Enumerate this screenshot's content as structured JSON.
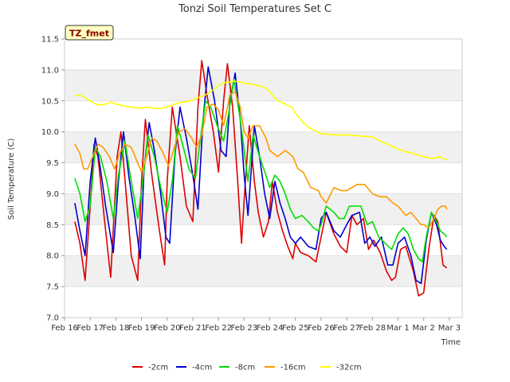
{
  "chart_data": {
    "type": "line",
    "title": "Tonzi Soil Temperatures Set C",
    "xlabel": "Time",
    "ylabel": "Soil Temperature (C)",
    "badge": "TZ_fmet",
    "ylim": [
      7.0,
      11.5
    ],
    "yticks": [
      7.0,
      7.5,
      8.0,
      8.5,
      9.0,
      9.5,
      10.0,
      10.5,
      11.0,
      11.5
    ],
    "ytick_labels": [
      "7.0",
      "7.5",
      "8.0",
      "8.5",
      "9.0",
      "9.5",
      "10.0",
      "10.5",
      "11.0",
      "11.5"
    ],
    "xlim": [
      0,
      15.5
    ],
    "xticks": [
      0,
      1,
      2,
      3,
      4,
      5,
      6,
      7,
      8,
      9,
      10,
      11,
      12,
      13,
      14,
      15
    ],
    "xtick_labels": [
      "Feb 16",
      "Feb 17",
      "Feb 18",
      "Feb 19",
      "Feb 20",
      "Feb 21",
      "Feb 22",
      "Feb 23",
      "Feb 24",
      "Feb 25",
      "Feb 26",
      "Feb 27",
      "Feb 28",
      "Mar 1",
      "Mar 2",
      "Mar 3"
    ],
    "grid": true,
    "legend_position": "bottom",
    "series": [
      {
        "name": "-2cm",
        "color": "#dd0000",
        "x": [
          0.4,
          0.6,
          0.8,
          1.0,
          1.15,
          1.3,
          1.55,
          1.8,
          2.05,
          2.2,
          2.4,
          2.6,
          2.85,
          3.0,
          3.15,
          3.4,
          3.7,
          3.9,
          4.0,
          4.2,
          4.5,
          4.75,
          5.0,
          5.2,
          5.35,
          5.55,
          5.8,
          6.0,
          6.2,
          6.35,
          6.55,
          6.75,
          6.9,
          7.0,
          7.2,
          7.4,
          7.55,
          7.75,
          7.95,
          8.1,
          8.3,
          8.5,
          8.7,
          8.9,
          9.0,
          9.2,
          9.5,
          9.8,
          10.0,
          10.2,
          10.5,
          10.75,
          11.0,
          11.2,
          11.4,
          11.65,
          11.85,
          12.05,
          12.3,
          12.55,
          12.75,
          12.9,
          13.1,
          13.3,
          13.6,
          13.8,
          14.0,
          14.2,
          14.4,
          14.55,
          14.75,
          14.9
        ],
        "values": [
          8.55,
          8.2,
          7.6,
          8.8,
          9.8,
          9.6,
          8.6,
          7.65,
          9.6,
          10.0,
          9.0,
          8.0,
          7.6,
          9.2,
          10.2,
          9.3,
          8.4,
          7.85,
          9.2,
          10.4,
          9.6,
          8.8,
          8.55,
          10.4,
          11.15,
          10.6,
          10.0,
          9.35,
          10.5,
          11.1,
          10.4,
          9.2,
          8.2,
          8.9,
          10.1,
          9.2,
          8.7,
          8.3,
          8.55,
          9.2,
          8.7,
          8.4,
          8.15,
          7.95,
          8.2,
          8.05,
          8.0,
          7.9,
          8.3,
          8.7,
          8.35,
          8.15,
          8.05,
          8.65,
          8.5,
          8.6,
          8.1,
          8.25,
          8.05,
          7.75,
          7.6,
          7.65,
          8.1,
          8.15,
          7.75,
          7.35,
          7.4,
          8.1,
          8.65,
          8.55,
          7.85,
          7.8
        ]
      },
      {
        "name": "-4cm",
        "color": "#0000cc",
        "x": [
          0.4,
          0.6,
          0.8,
          1.0,
          1.2,
          1.4,
          1.6,
          1.9,
          2.1,
          2.3,
          2.5,
          2.75,
          2.95,
          3.1,
          3.3,
          3.5,
          3.75,
          3.95,
          4.1,
          4.3,
          4.5,
          4.75,
          5.0,
          5.2,
          5.4,
          5.6,
          5.85,
          6.1,
          6.3,
          6.45,
          6.65,
          6.85,
          7.0,
          7.15,
          7.4,
          7.6,
          7.8,
          8.0,
          8.2,
          8.4,
          8.6,
          8.8,
          9.0,
          9.2,
          9.5,
          9.8,
          10.0,
          10.2,
          10.5,
          10.75,
          11.0,
          11.2,
          11.5,
          11.7,
          11.9,
          12.1,
          12.35,
          12.6,
          12.8,
          13.0,
          13.25,
          13.5,
          13.7,
          13.9,
          14.1,
          14.3,
          14.5,
          14.65,
          14.8,
          14.9
        ],
        "values": [
          8.85,
          8.4,
          8.0,
          9.2,
          9.9,
          9.4,
          8.8,
          8.05,
          9.2,
          10.0,
          9.3,
          8.6,
          7.95,
          9.4,
          10.15,
          9.7,
          9.0,
          8.3,
          8.2,
          9.6,
          10.4,
          9.9,
          9.3,
          8.75,
          10.2,
          11.05,
          10.5,
          9.7,
          9.6,
          10.5,
          10.95,
          10.2,
          9.3,
          8.65,
          10.1,
          9.6,
          9.0,
          8.6,
          9.2,
          8.85,
          8.6,
          8.3,
          8.2,
          8.3,
          8.15,
          8.1,
          8.6,
          8.7,
          8.4,
          8.3,
          8.5,
          8.65,
          8.7,
          8.2,
          8.3,
          8.15,
          8.3,
          7.85,
          7.85,
          8.2,
          8.3,
          8.0,
          7.6,
          7.55,
          8.25,
          8.7,
          8.5,
          8.25,
          8.15,
          8.1
        ]
      },
      {
        "name": "-8cm",
        "color": "#00dd00",
        "x": [
          0.4,
          0.6,
          0.8,
          1.0,
          1.2,
          1.4,
          1.65,
          1.9,
          2.1,
          2.35,
          2.6,
          2.85,
          3.05,
          3.25,
          3.5,
          3.75,
          4.0,
          4.2,
          4.4,
          4.6,
          4.85,
          5.1,
          5.3,
          5.5,
          5.7,
          5.95,
          6.2,
          6.4,
          6.6,
          6.85,
          7.0,
          7.15,
          7.35,
          7.6,
          7.85,
          8.0,
          8.2,
          8.4,
          8.6,
          8.8,
          9.0,
          9.25,
          9.5,
          9.7,
          9.9,
          10.0,
          10.2,
          10.5,
          10.7,
          10.9,
          11.1,
          11.3,
          11.55,
          11.8,
          12.0,
          12.25,
          12.5,
          12.75,
          13.0,
          13.2,
          13.4,
          13.6,
          13.8,
          13.95,
          14.1,
          14.3,
          14.5,
          14.65,
          14.8,
          14.9
        ],
        "values": [
          9.25,
          9.0,
          8.55,
          8.8,
          9.75,
          9.6,
          9.2,
          8.6,
          9.3,
          9.85,
          9.2,
          8.6,
          9.2,
          9.95,
          9.6,
          9.1,
          8.7,
          9.2,
          10.1,
          9.8,
          9.4,
          9.25,
          9.9,
          10.5,
          10.4,
          10.1,
          9.85,
          10.3,
          10.85,
          10.2,
          9.7,
          9.2,
          9.95,
          9.6,
          9.3,
          9.1,
          9.3,
          9.2,
          9.0,
          8.75,
          8.6,
          8.65,
          8.55,
          8.45,
          8.4,
          8.5,
          8.8,
          8.7,
          8.6,
          8.6,
          8.8,
          8.8,
          8.8,
          8.5,
          8.55,
          8.3,
          8.2,
          8.1,
          8.35,
          8.45,
          8.35,
          8.1,
          7.95,
          7.9,
          8.3,
          8.7,
          8.55,
          8.4,
          8.35,
          8.3
        ]
      },
      {
        "name": "-16cm",
        "color": "#ff9900",
        "x": [
          0.4,
          0.6,
          0.75,
          0.9,
          1.1,
          1.3,
          1.5,
          1.75,
          1.95,
          2.15,
          2.35,
          2.6,
          2.8,
          3.0,
          3.2,
          3.4,
          3.6,
          3.85,
          4.05,
          4.25,
          4.45,
          4.7,
          4.95,
          5.15,
          5.35,
          5.55,
          5.8,
          6.0,
          6.2,
          6.45,
          6.65,
          6.85,
          7.0,
          7.15,
          7.35,
          7.6,
          7.85,
          8.0,
          8.3,
          8.6,
          8.9,
          9.1,
          9.3,
          9.6,
          9.9,
          10.0,
          10.2,
          10.5,
          10.8,
          11.0,
          11.2,
          11.4,
          11.7,
          12.0,
          12.3,
          12.55,
          12.8,
          13.0,
          13.3,
          13.5,
          13.7,
          13.9,
          14.0,
          14.2,
          14.4,
          14.55,
          14.7,
          14.85,
          14.9
        ],
        "values": [
          9.8,
          9.65,
          9.4,
          9.4,
          9.6,
          9.8,
          9.75,
          9.6,
          9.4,
          9.65,
          9.8,
          9.75,
          9.55,
          9.35,
          9.6,
          9.9,
          9.85,
          9.65,
          9.45,
          9.7,
          10.0,
          10.05,
          9.9,
          9.75,
          9.95,
          10.4,
          10.45,
          10.35,
          10.1,
          10.6,
          10.65,
          10.4,
          10.0,
          9.9,
          10.1,
          10.1,
          9.9,
          9.7,
          9.6,
          9.7,
          9.6,
          9.4,
          9.35,
          9.1,
          9.05,
          8.95,
          8.85,
          9.1,
          9.05,
          9.05,
          9.1,
          9.15,
          9.15,
          9.0,
          8.95,
          8.95,
          8.85,
          8.8,
          8.65,
          8.7,
          8.6,
          8.5,
          8.5,
          8.45,
          8.6,
          8.75,
          8.8,
          8.8,
          8.75
        ]
      },
      {
        "name": "-32cm",
        "color": "#ffff00",
        "x": [
          0.4,
          0.6,
          0.8,
          1.0,
          1.2,
          1.4,
          1.6,
          1.8,
          2.0,
          2.3,
          2.6,
          2.9,
          3.2,
          3.5,
          3.8,
          4.0,
          4.3,
          4.6,
          4.9,
          5.2,
          5.5,
          5.8,
          6.0,
          6.3,
          6.6,
          6.9,
          7.0,
          7.2,
          7.5,
          7.8,
          8.0,
          8.3,
          8.6,
          8.9,
          9.0,
          9.3,
          9.6,
          10.0,
          10.3,
          10.6,
          11.0,
          11.3,
          11.6,
          12.0,
          12.3,
          12.6,
          13.0,
          13.3,
          13.6,
          14.0,
          14.2,
          14.4,
          14.6,
          14.8,
          14.9
        ],
        "values": [
          10.58,
          10.6,
          10.55,
          10.5,
          10.45,
          10.43,
          10.45,
          10.48,
          10.45,
          10.42,
          10.4,
          10.38,
          10.4,
          10.38,
          10.38,
          10.4,
          10.45,
          10.48,
          10.5,
          10.55,
          10.6,
          10.68,
          10.75,
          10.8,
          10.82,
          10.8,
          10.78,
          10.78,
          10.75,
          10.72,
          10.65,
          10.5,
          10.45,
          10.38,
          10.3,
          10.15,
          10.05,
          9.97,
          9.96,
          9.95,
          9.95,
          9.94,
          9.93,
          9.92,
          9.85,
          9.8,
          9.72,
          9.68,
          9.65,
          9.6,
          9.58,
          9.57,
          9.6,
          9.56,
          9.55
        ]
      }
    ]
  }
}
